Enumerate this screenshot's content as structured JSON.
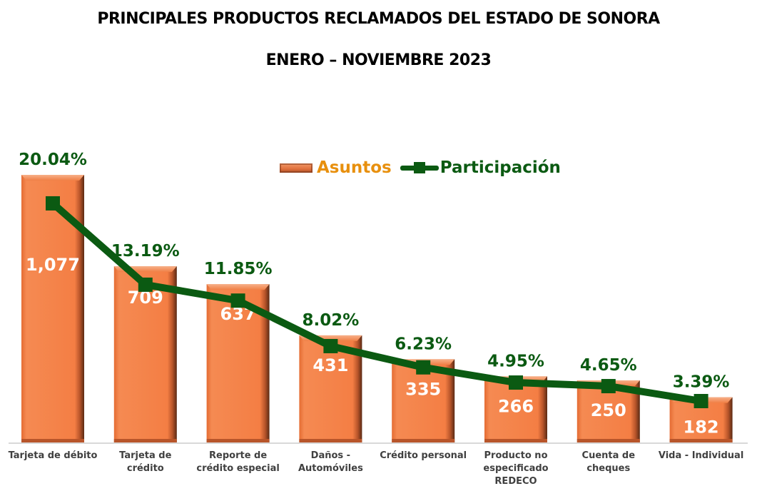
{
  "chart_data": {
    "type": "bar",
    "title": "PRINCIPALES PRODUCTOS RECLAMADOS DEL ESTADO DE SONORA",
    "subtitle": "ENERO – NOVIEMBRE 2023",
    "xlabel": "",
    "ylabel": "",
    "legend_position": "top-center",
    "grid": false,
    "categories": [
      [
        "Tarjeta de débito"
      ],
      [
        "Tarjeta de",
        "crédito"
      ],
      [
        "Reporte de",
        "crédito especial"
      ],
      [
        "Daños -",
        "Automóviles"
      ],
      [
        "Crédito personal"
      ],
      [
        "Producto no",
        "especificado",
        "REDECO"
      ],
      [
        "Cuenta de",
        "cheques"
      ],
      [
        "Vida - Individual"
      ]
    ],
    "series": [
      {
        "name": "Asuntos",
        "type": "bar",
        "color": "#f07f45",
        "values": [
          1077,
          709,
          637,
          431,
          335,
          266,
          250,
          182
        ],
        "labels": [
          "1,077",
          "709",
          "637",
          "431",
          "335",
          "266",
          "250",
          "182"
        ]
      },
      {
        "name": "Participación",
        "type": "line",
        "color": "#0b5a12",
        "values": [
          20.04,
          13.19,
          11.85,
          8.02,
          6.23,
          4.95,
          4.65,
          3.39
        ],
        "labels": [
          "20.04%",
          "13.19%",
          "11.85%",
          "8.02%",
          "6.23%",
          "4.95%",
          "4.65%",
          "3.39%"
        ]
      }
    ]
  },
  "legend": {
    "asuntos": "Asuntos",
    "participacion": "Participación",
    "asuntos_color": "#e8900e",
    "participacion_color": "#0b5a12"
  }
}
